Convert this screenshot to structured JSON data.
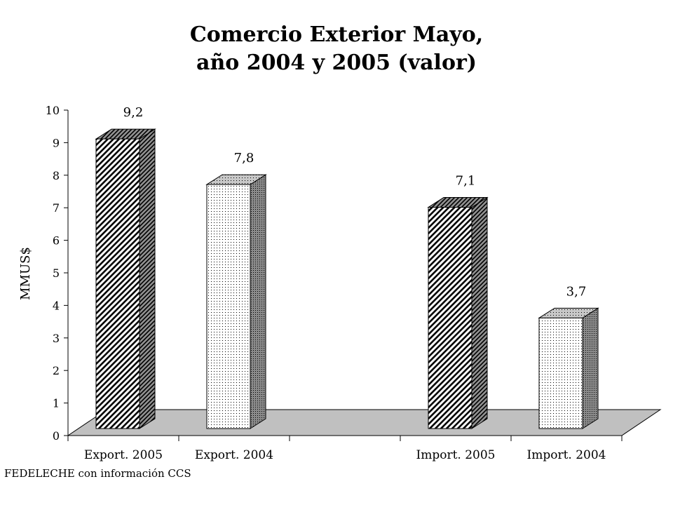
{
  "chart_data": {
    "type": "bar",
    "title_lines": [
      "Comercio Exterior Mayo,",
      "año 2004 y 2005 (valor)"
    ],
    "ylabel": "MMUS$",
    "ylim": [
      0,
      10
    ],
    "yticks": [
      0,
      1,
      2,
      3,
      4,
      5,
      6,
      7,
      8,
      9,
      10
    ],
    "categories": [
      "Export. 2005",
      "Export. 2004",
      "",
      "Import. 2005",
      "Import. 2004"
    ],
    "values": [
      9.2,
      7.8,
      null,
      7.1,
      3.7
    ],
    "value_labels": [
      "9,2",
      "7,8",
      "",
      "7,1",
      "3,7"
    ],
    "bar_patterns": [
      "diagonal-hatch",
      "dots",
      null,
      "diagonal-hatch",
      "dots"
    ],
    "legend": "none",
    "grid": false,
    "colors": {
      "floor": "#c0c0c0",
      "bar_face": "#ffffff",
      "bar_side": "#808080",
      "ink": "#000000"
    }
  },
  "footer": {
    "source": "FEDELECHE con información CCS"
  }
}
